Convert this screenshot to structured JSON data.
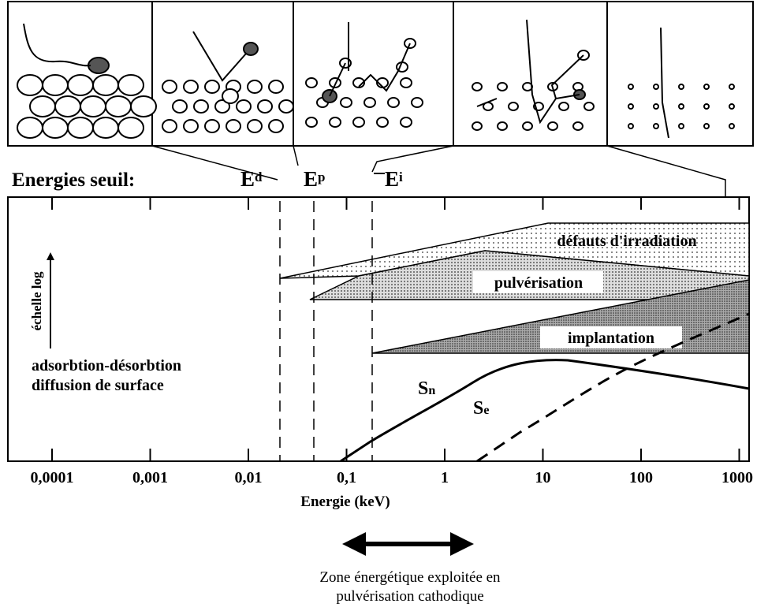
{
  "thresholds": {
    "title": "Energies seuil:",
    "items": [
      {
        "symbol": "E",
        "index": "d"
      },
      {
        "symbol": "E",
        "index": "p"
      },
      {
        "symbol": "E",
        "index": "i"
      }
    ]
  },
  "y_axis_label": "échelle log",
  "regions": [
    "défauts d'irradiation",
    "pulvérisation",
    "implantation"
  ],
  "surface_labels": [
    "adsorbtion-désorbtion",
    "diffusion de surface"
  ],
  "curves": [
    {
      "symbol": "S",
      "index": "n"
    },
    {
      "symbol": "S",
      "index": "e"
    }
  ],
  "x_tick_labels": [
    "0,0001",
    "0,001",
    "0,01",
    "0,1",
    "1",
    "10",
    "100",
    "1000"
  ],
  "x_axis_label": "Energie (keV)",
  "caption": [
    "Zone énergétique exploitée en",
    "pulvérisation cathodique"
  ]
}
